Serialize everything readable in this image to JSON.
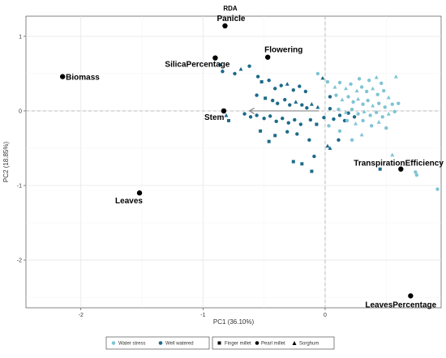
{
  "chart_data": {
    "type": "scatter",
    "title": "RDA",
    "xlabel": "PC1 (36.10%)",
    "ylabel": "PC2 (18.85%)",
    "xlim": [
      -2.45,
      0.95
    ],
    "ylim": [
      -2.64,
      1.27
    ],
    "x_ticks": [
      -2,
      -1,
      0
    ],
    "y_ticks": [
      1,
      0,
      -1,
      -2
    ],
    "x_tick_labels": [
      "-2",
      "-1",
      "0"
    ],
    "y_tick_labels": [
      "1",
      "0",
      "-1",
      "-2"
    ],
    "grid": true,
    "reference_lines": {
      "x": 0,
      "y": 0,
      "style": "dashed"
    },
    "colors": {
      "water_stress": "#7fc4d4",
      "well_watered": "#1d6a8a",
      "variables": "#000000",
      "arrow": "#888888"
    },
    "arrow": {
      "from": [
        -0.05,
        0.0
      ],
      "to": [
        -0.62,
        0.0
      ]
    },
    "variables": [
      {
        "name": "Panicle",
        "x": -0.82,
        "y": 1.14
      },
      {
        "name": "Flowering",
        "x": -0.47,
        "y": 0.72
      },
      {
        "name": "SilicaPercentage",
        "x": -0.9,
        "y": 0.71
      },
      {
        "name": "Biomass",
        "x": -2.15,
        "y": 0.46
      },
      {
        "name": "Stem",
        "x": -0.83,
        "y": 0.0
      },
      {
        "name": "TranspirationEfficiency",
        "x": 0.62,
        "y": -0.78
      },
      {
        "name": "Leaves",
        "x": -1.52,
        "y": -1.1
      },
      {
        "name": "LeavesPercentage",
        "x": 0.7,
        "y": -2.48
      }
    ],
    "legend_treatment": [
      {
        "label": "Water stress",
        "color": "#7fc4d4"
      },
      {
        "label": "Well watered",
        "color": "#1d6a8a"
      }
    ],
    "legend_species": [
      {
        "label": "Finger millet",
        "shape": "square"
      },
      {
        "label": "Pearl millet",
        "shape": "circle"
      },
      {
        "label": "Sorghum",
        "shape": "triangle"
      }
    ],
    "series": [
      {
        "treatment": "Well watered",
        "points": [
          {
            "x": -0.86,
            "y": 0.62,
            "s": "triangle"
          },
          {
            "x": -0.84,
            "y": 0.53,
            "s": "circle"
          },
          {
            "x": -0.74,
            "y": 0.5,
            "s": "circle"
          },
          {
            "x": -0.69,
            "y": 0.56,
            "s": "triangle"
          },
          {
            "x": -0.62,
            "y": 0.6,
            "s": "circle"
          },
          {
            "x": -0.55,
            "y": 0.46,
            "s": "circle"
          },
          {
            "x": -0.52,
            "y": 0.39,
            "s": "square"
          },
          {
            "x": -0.46,
            "y": 0.41,
            "s": "circle"
          },
          {
            "x": -0.41,
            "y": 0.3,
            "s": "circle"
          },
          {
            "x": -0.36,
            "y": 0.34,
            "s": "circle"
          },
          {
            "x": -0.31,
            "y": 0.36,
            "s": "triangle"
          },
          {
            "x": -0.26,
            "y": 0.28,
            "s": "circle"
          },
          {
            "x": -0.21,
            "y": 0.33,
            "s": "circle"
          },
          {
            "x": -0.16,
            "y": 0.26,
            "s": "circle"
          },
          {
            "x": -0.56,
            "y": 0.21,
            "s": "circle"
          },
          {
            "x": -0.49,
            "y": 0.17,
            "s": "square"
          },
          {
            "x": -0.43,
            "y": 0.14,
            "s": "circle"
          },
          {
            "x": -0.39,
            "y": 0.1,
            "s": "circle"
          },
          {
            "x": -0.33,
            "y": 0.15,
            "s": "circle"
          },
          {
            "x": -0.29,
            "y": 0.08,
            "s": "circle"
          },
          {
            "x": -0.24,
            "y": 0.12,
            "s": "triangle"
          },
          {
            "x": -0.19,
            "y": 0.08,
            "s": "circle"
          },
          {
            "x": -0.15,
            "y": 0.04,
            "s": "circle"
          },
          {
            "x": -0.11,
            "y": 0.09,
            "s": "triangle"
          },
          {
            "x": -0.06,
            "y": 0.05,
            "s": "triangle"
          },
          {
            "x": -0.66,
            "y": -0.04,
            "s": "circle"
          },
          {
            "x": -0.61,
            "y": -0.08,
            "s": "circle"
          },
          {
            "x": -0.56,
            "y": -0.06,
            "s": "circle"
          },
          {
            "x": -0.5,
            "y": -0.1,
            "s": "circle"
          },
          {
            "x": -0.45,
            "y": -0.07,
            "s": "circle"
          },
          {
            "x": -0.4,
            "y": -0.14,
            "s": "circle"
          },
          {
            "x": -0.35,
            "y": -0.1,
            "s": "circle"
          },
          {
            "x": -0.3,
            "y": -0.16,
            "s": "circle"
          },
          {
            "x": -0.25,
            "y": -0.12,
            "s": "circle"
          },
          {
            "x": -0.2,
            "y": -0.18,
            "s": "circle"
          },
          {
            "x": -0.12,
            "y": -0.12,
            "s": "circle"
          },
          {
            "x": -0.07,
            "y": -0.18,
            "s": "square"
          },
          {
            "x": -0.01,
            "y": -0.09,
            "s": "circle"
          },
          {
            "x": 0.07,
            "y": -0.11,
            "s": "circle"
          },
          {
            "x": 0.12,
            "y": -0.06,
            "s": "circle"
          },
          {
            "x": 0.16,
            "y": -0.13,
            "s": "circle"
          },
          {
            "x": 0.19,
            "y": -0.03,
            "s": "circle"
          },
          {
            "x": 0.24,
            "y": -0.08,
            "s": "circle"
          },
          {
            "x": 0.04,
            "y": 0.03,
            "s": "circle"
          },
          {
            "x": -0.79,
            "y": -0.13,
            "s": "square"
          },
          {
            "x": -0.81,
            "y": -0.06,
            "s": "triangle"
          },
          {
            "x": -0.53,
            "y": -0.27,
            "s": "square"
          },
          {
            "x": -0.41,
            "y": -0.33,
            "s": "square"
          },
          {
            "x": -0.31,
            "y": -0.28,
            "s": "circle"
          },
          {
            "x": -0.23,
            "y": -0.31,
            "s": "circle"
          },
          {
            "x": -0.13,
            "y": -0.39,
            "s": "circle"
          },
          {
            "x": -0.46,
            "y": -0.41,
            "s": "square"
          },
          {
            "x": -0.26,
            "y": -0.68,
            "s": "square"
          },
          {
            "x": -0.19,
            "y": -0.71,
            "s": "square"
          },
          {
            "x": -0.09,
            "y": -0.61,
            "s": "circle"
          },
          {
            "x": -0.11,
            "y": -0.81,
            "s": "square"
          },
          {
            "x": 0.02,
            "y": -0.47,
            "s": "triangle"
          },
          {
            "x": 0.04,
            "y": -0.5,
            "s": "triangle"
          },
          {
            "x": 0.11,
            "y": -0.39,
            "s": "circle"
          },
          {
            "x": 0.04,
            "y": 0.19,
            "s": "circle"
          },
          {
            "x": -0.02,
            "y": 0.44,
            "s": "triangle"
          },
          {
            "x": 0.45,
            "y": -0.78,
            "s": "square"
          }
        ]
      },
      {
        "treatment": "Water stress",
        "points": [
          {
            "x": -0.06,
            "y": 0.5,
            "s": "circle"
          },
          {
            "x": 0.02,
            "y": 0.39,
            "s": "circle"
          },
          {
            "x": 0.08,
            "y": 0.32,
            "s": "triangle"
          },
          {
            "x": 0.12,
            "y": 0.38,
            "s": "circle"
          },
          {
            "x": 0.17,
            "y": 0.3,
            "s": "triangle"
          },
          {
            "x": 0.21,
            "y": 0.36,
            "s": "circle"
          },
          {
            "x": 0.26,
            "y": 0.27,
            "s": "triangle"
          },
          {
            "x": 0.3,
            "y": 0.32,
            "s": "circle"
          },
          {
            "x": 0.34,
            "y": 0.26,
            "s": "circle"
          },
          {
            "x": 0.39,
            "y": 0.3,
            "s": "triangle"
          },
          {
            "x": 0.43,
            "y": 0.22,
            "s": "circle"
          },
          {
            "x": 0.48,
            "y": 0.27,
            "s": "circle"
          },
          {
            "x": 0.52,
            "y": 0.18,
            "s": "triangle"
          },
          {
            "x": 0.36,
            "y": 0.41,
            "s": "circle"
          },
          {
            "x": 0.42,
            "y": 0.45,
            "s": "triangle"
          },
          {
            "x": 0.28,
            "y": 0.43,
            "s": "circle"
          },
          {
            "x": 0.46,
            "y": 0.37,
            "s": "circle"
          },
          {
            "x": 0.09,
            "y": 0.21,
            "s": "circle"
          },
          {
            "x": 0.14,
            "y": 0.15,
            "s": "triangle"
          },
          {
            "x": 0.19,
            "y": 0.19,
            "s": "circle"
          },
          {
            "x": 0.23,
            "y": 0.12,
            "s": "circle"
          },
          {
            "x": 0.27,
            "y": 0.16,
            "s": "triangle"
          },
          {
            "x": 0.31,
            "y": 0.09,
            "s": "circle"
          },
          {
            "x": 0.35,
            "y": 0.14,
            "s": "circle"
          },
          {
            "x": 0.39,
            "y": 0.07,
            "s": "triangle"
          },
          {
            "x": 0.44,
            "y": 0.1,
            "s": "circle"
          },
          {
            "x": 0.49,
            "y": 0.05,
            "s": "circle"
          },
          {
            "x": 0.55,
            "y": 0.09,
            "s": "circle"
          },
          {
            "x": 0.6,
            "y": 0.1,
            "s": "circle"
          },
          {
            "x": 0.11,
            "y": 0.02,
            "s": "circle"
          },
          {
            "x": 0.17,
            "y": -0.02,
            "s": "triangle"
          },
          {
            "x": 0.22,
            "y": 0.02,
            "s": "circle"
          },
          {
            "x": 0.27,
            "y": -0.04,
            "s": "circle"
          },
          {
            "x": 0.32,
            "y": -0.01,
            "s": "triangle"
          },
          {
            "x": 0.37,
            "y": -0.06,
            "s": "circle"
          },
          {
            "x": 0.42,
            "y": -0.02,
            "s": "circle"
          },
          {
            "x": 0.47,
            "y": -0.08,
            "s": "circle"
          },
          {
            "x": 0.52,
            "y": -0.04,
            "s": "triangle"
          },
          {
            "x": 0.57,
            "y": -0.01,
            "s": "circle"
          },
          {
            "x": 0.18,
            "y": -0.13,
            "s": "circle"
          },
          {
            "x": 0.25,
            "y": -0.17,
            "s": "triangle"
          },
          {
            "x": 0.31,
            "y": -0.13,
            "s": "circle"
          },
          {
            "x": 0.38,
            "y": -0.2,
            "s": "circle"
          },
          {
            "x": 0.44,
            "y": -0.15,
            "s": "triangle"
          },
          {
            "x": 0.5,
            "y": -0.23,
            "s": "circle"
          },
          {
            "x": 0.3,
            "y": -0.32,
            "s": "triangle"
          },
          {
            "x": 0.22,
            "y": -0.39,
            "s": "circle"
          },
          {
            "x": 0.55,
            "y": -0.59,
            "s": "triangle"
          },
          {
            "x": 0.74,
            "y": -0.82,
            "s": "circle"
          },
          {
            "x": 0.75,
            "y": -0.86,
            "s": "circle"
          },
          {
            "x": 0.92,
            "y": -1.05,
            "s": "circle"
          },
          {
            "x": 0.58,
            "y": 0.46,
            "s": "triangle"
          },
          {
            "x": 0.03,
            "y": -0.2,
            "s": "circle"
          },
          {
            "x": 0.12,
            "y": -0.27,
            "s": "circle"
          }
        ]
      }
    ]
  }
}
